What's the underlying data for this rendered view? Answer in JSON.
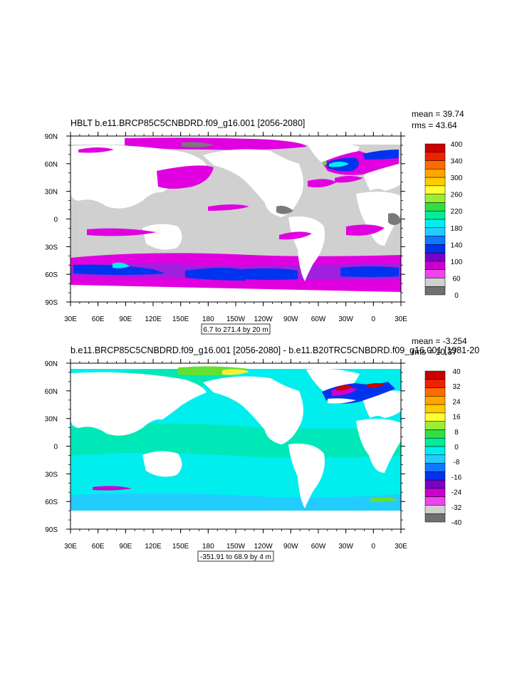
{
  "panels": [
    {
      "title": "HBLT b.e11.BRCP85C5CNBDRD.f09_g16.001 [2056-2080]",
      "mean": "mean = 39.74",
      "rms": "rms = 43.64",
      "info": "6.7 to 271.4 by 20 m",
      "lat_labels": [
        "90N",
        "60N",
        "30N",
        "0",
        "30S",
        "60S",
        "90S"
      ],
      "lon_labels": [
        "30E",
        "60E",
        "90E",
        "120E",
        "150E",
        "180",
        "150W",
        "120W",
        "90W",
        "60W",
        "30W",
        "0",
        "30E"
      ],
      "colorbar": {
        "labels": [
          "400",
          "340",
          "300",
          "260",
          "220",
          "180",
          "140",
          "100",
          "60",
          "0"
        ],
        "colors": [
          "#cc0000",
          "#ee2200",
          "#ff6a00",
          "#ffa500",
          "#ffcc00",
          "#ffff33",
          "#99ee33",
          "#33dd44",
          "#00ee99",
          "#00eeee",
          "#22ccff",
          "#1177ff",
          "#0033ee",
          "#7700cc",
          "#cc00cc",
          "#ee44ee",
          "#d0d0d0",
          "#707070"
        ]
      }
    },
    {
      "title": "b.e11.BRCP85C5CNBDRD.f09_g16.001 [2056-2080] - b.e11.B20TRC5CNBDRD.f09_g16.001 [1981-20",
      "mean": "mean = -3.254",
      "rms": "rms = 10.37",
      "info": "-351.91 to 68.9 by 4 m",
      "lat_labels": [
        "90N",
        "60N",
        "30N",
        "0",
        "30S",
        "60S",
        "90S"
      ],
      "lon_labels": [
        "30E",
        "60E",
        "90E",
        "120E",
        "150E",
        "180",
        "150W",
        "120W",
        "90W",
        "60W",
        "30W",
        "0",
        "30E"
      ],
      "colorbar": {
        "labels": [
          "40",
          "32",
          "24",
          "16",
          "8",
          "0",
          "-8",
          "-16",
          "-24",
          "-32",
          "-40"
        ],
        "colors": [
          "#cc0000",
          "#ee2200",
          "#ff6a00",
          "#ffa500",
          "#ffcc00",
          "#ffff33",
          "#99ee33",
          "#33dd44",
          "#00ee99",
          "#00eeee",
          "#22ccff",
          "#1177ff",
          "#0033ee",
          "#7700cc",
          "#cc00cc",
          "#ee44ee",
          "#d0d0d0",
          "#707070"
        ]
      }
    }
  ],
  "colors": {
    "land": "#ffffff",
    "gray_ocean": "#d0d0d0",
    "dark_gray": "#7a7a7a",
    "magenta": "#e000e0",
    "violet": "#a020e0",
    "blue": "#0033ee",
    "cyan": "#00eeee",
    "teal": "#00e8b8",
    "green": "#66e030",
    "yellow": "#ffee33",
    "red": "#cc0000"
  }
}
